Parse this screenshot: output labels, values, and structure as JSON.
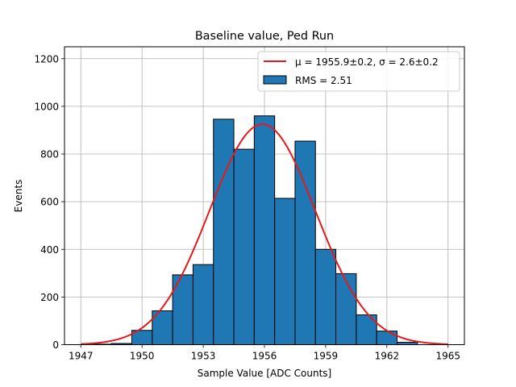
{
  "chart_data": {
    "type": "bar",
    "title": "Baseline value, Ped Run",
    "xlabel": "Sample Value [ADC Counts]",
    "ylabel": "Events",
    "xlim": [
      1946.2,
      1965.8
    ],
    "ylim": [
      0,
      1250
    ],
    "grid": true,
    "legend_position": "top-right",
    "xticks": [
      1947,
      1950,
      1953,
      1956,
      1959,
      1962,
      1965
    ],
    "yticks": [
      0,
      200,
      400,
      600,
      800,
      1000,
      1200
    ],
    "bin_width": 1,
    "bins_left": [
      1947.5,
      1948.5,
      1949.5,
      1950.5,
      1951.5,
      1952.5,
      1953.5,
      1954.5,
      1955.5,
      1956.5,
      1957.5,
      1958.5,
      1959.5,
      1960.5,
      1961.5,
      1962.5
    ],
    "counts": [
      2,
      5,
      60,
      142,
      293,
      336,
      946,
      820,
      960,
      614,
      854,
      400,
      298,
      125,
      57,
      10
    ],
    "fit": {
      "mu": 1955.9,
      "sigma": 2.6,
      "amplitude": 925,
      "range": [
        1947,
        1965
      ]
    },
    "legend": [
      {
        "label_main": "μ = 1955.9±0.2, σ = 2.6±0.2",
        "kind": "line",
        "color": "#e41a1c"
      },
      {
        "label_main": "RMS = 2.51",
        "kind": "patch",
        "color": "#1f77b4"
      }
    ],
    "colors": {
      "bar_fill": "#1f77b4",
      "bar_edge": "#000000",
      "fit_line": "#e41a1c",
      "grid": "#b0b0b0"
    }
  }
}
